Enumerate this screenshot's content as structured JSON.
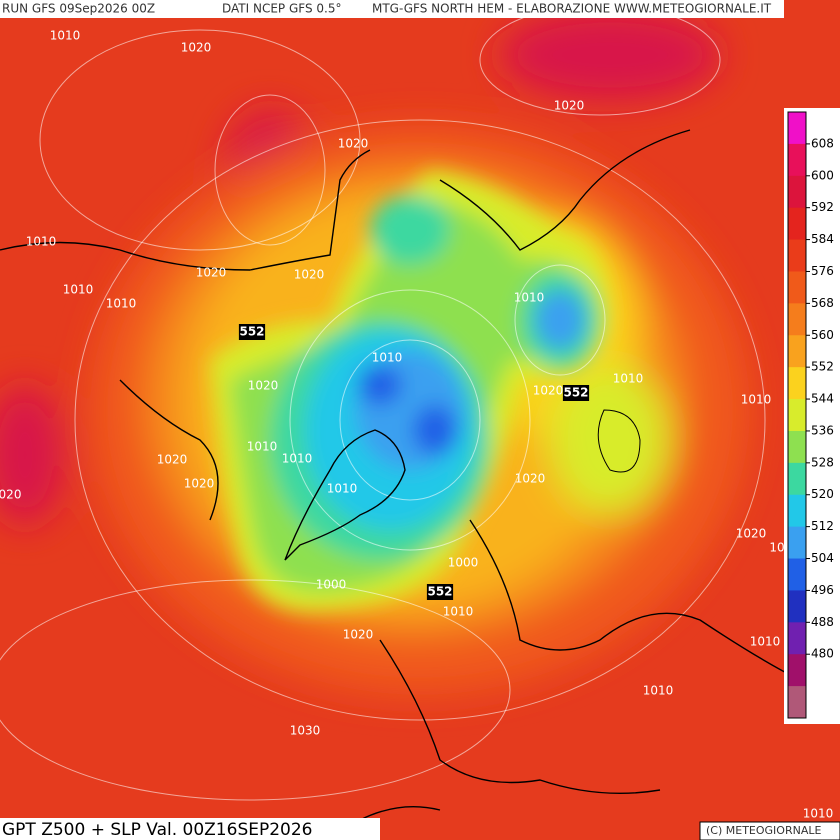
{
  "header": {
    "run": "RUN GFS 09Sep2026 00Z",
    "source": "DATI NCEP GFS 0.5°",
    "title": "MTG-GFS NORTH HEM - ELABORAZIONE WWW.METEOGIORNALE.IT"
  },
  "footer": {
    "title": "GPT Z500 + SLP Val. 00Z16SEP2026",
    "credit": "(C) METEOGIORNALE"
  },
  "legend": {
    "ticks": [
      608,
      600,
      592,
      584,
      576,
      568,
      560,
      552,
      544,
      536,
      528,
      520,
      512,
      504,
      496,
      488,
      480
    ],
    "colors": [
      "#f010c8",
      "#e8105a",
      "#dc143c",
      "#e4241e",
      "#ea3c1a",
      "#f05a1a",
      "#f57d1c",
      "#f9a21e",
      "#fbd21e",
      "#d8ec2c",
      "#8ee050",
      "#3cd8a0",
      "#22c8e8",
      "#3aa0f0",
      "#2060e6",
      "#2030c0",
      "#7020b0",
      "#a0106a",
      "#b05878"
    ]
  },
  "contour_labels": [
    "1010",
    "1020",
    "1020",
    "1020",
    "1010",
    "1020",
    "1020",
    "1010",
    "1010",
    "552",
    "1010",
    "1010",
    "1020",
    "1020",
    "552",
    "1010",
    "1010",
    "1010",
    "1010",
    "1020",
    "1020",
    "1010",
    "1020",
    "020",
    "1020",
    "10",
    "1000",
    "552",
    "1000",
    "1010",
    "1020",
    "1010",
    "1010",
    "1030",
    "1010"
  ]
}
